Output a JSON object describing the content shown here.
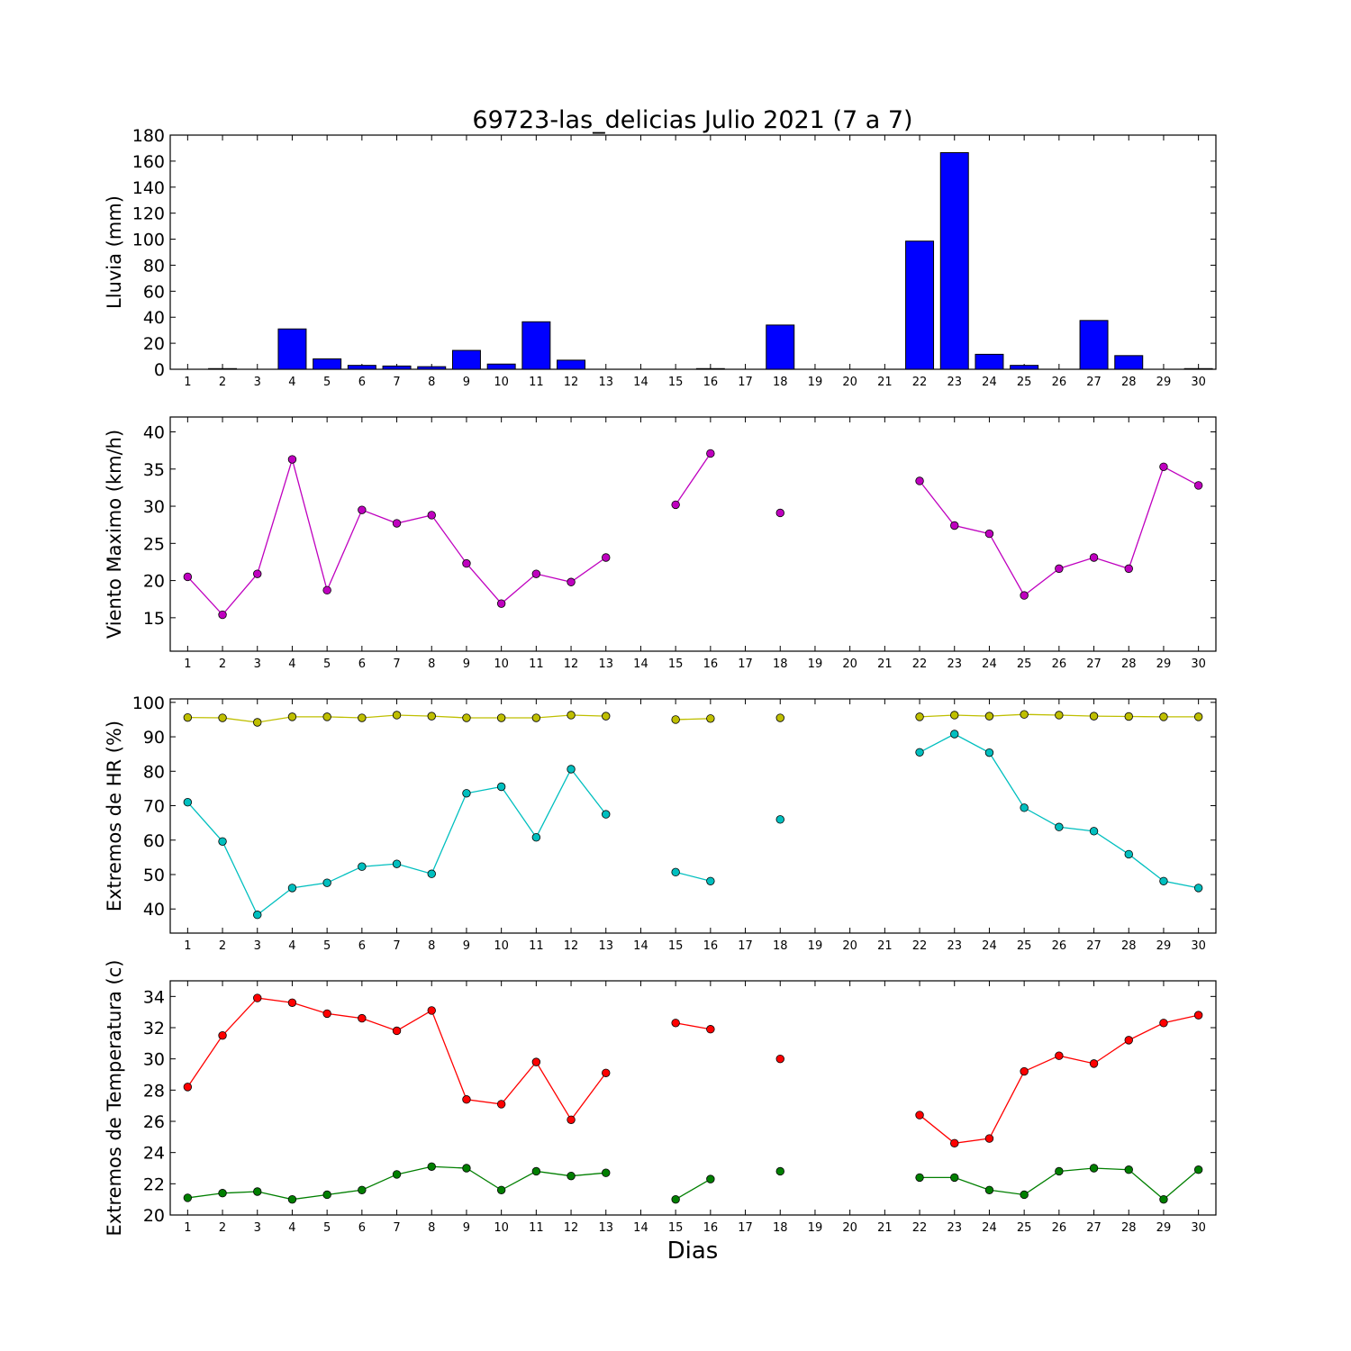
{
  "figure": {
    "title": "69723-las_delicias Julio 2021  (7 a 7)",
    "xlabel": "Dias"
  },
  "chart_data": [
    {
      "type": "bar",
      "ylabel": "Lluvia (mm)",
      "ylim": [
        0,
        180
      ],
      "yticks": [
        0,
        20,
        40,
        60,
        80,
        100,
        120,
        140,
        160,
        180
      ],
      "x": [
        1,
        2,
        3,
        4,
        5,
        6,
        7,
        8,
        9,
        10,
        11,
        12,
        13,
        14,
        15,
        16,
        17,
        18,
        19,
        20,
        21,
        22,
        23,
        24,
        25,
        26,
        27,
        28,
        29,
        30
      ],
      "series": [
        {
          "color": "#0000ff",
          "values": [
            0,
            0.5,
            0,
            31,
            8,
            3,
            2.5,
            2,
            14.5,
            4,
            36.5,
            7,
            0,
            0,
            0,
            0.5,
            0,
            34,
            0,
            0,
            0,
            98.5,
            166.5,
            11.5,
            3,
            0,
            37.5,
            10.5,
            0,
            0.5
          ]
        }
      ]
    },
    {
      "type": "line",
      "ylabel": "Viento Maximo (km/h)",
      "ylim": [
        10.5,
        42
      ],
      "yticks": [
        15,
        20,
        25,
        30,
        35,
        40
      ],
      "x": [
        1,
        2,
        3,
        4,
        5,
        6,
        7,
        8,
        9,
        10,
        11,
        12,
        13,
        14,
        15,
        16,
        17,
        18,
        19,
        20,
        21,
        22,
        23,
        24,
        25,
        26,
        27,
        28,
        29,
        30
      ],
      "series": [
        {
          "color": "#bf00bf",
          "values": [
            20.5,
            15.4,
            20.9,
            36.3,
            18.7,
            29.5,
            27.7,
            28.8,
            22.3,
            16.9,
            20.9,
            19.8,
            23.1,
            null,
            30.2,
            37.1,
            null,
            29.1,
            null,
            null,
            null,
            33.4,
            27.4,
            26.3,
            18.0,
            21.6,
            23.1,
            21.6,
            35.3,
            32.8
          ]
        }
      ]
    },
    {
      "type": "line",
      "ylabel": "Extremos de HR (%)",
      "ylim": [
        33,
        101
      ],
      "yticks": [
        40,
        50,
        60,
        70,
        80,
        90,
        100
      ],
      "x": [
        1,
        2,
        3,
        4,
        5,
        6,
        7,
        8,
        9,
        10,
        11,
        12,
        13,
        14,
        15,
        16,
        17,
        18,
        19,
        20,
        21,
        22,
        23,
        24,
        25,
        26,
        27,
        28,
        29,
        30
      ],
      "series": [
        {
          "color": "#bfbf00",
          "values": [
            95.6,
            95.5,
            94.2,
            95.8,
            95.8,
            95.5,
            96.3,
            96.0,
            95.5,
            95.5,
            95.5,
            96.3,
            96.0,
            null,
            95.0,
            95.3,
            null,
            95.5,
            null,
            null,
            null,
            95.8,
            96.3,
            96.0,
            96.5,
            96.3,
            96.0,
            95.9,
            95.8,
            95.8
          ]
        },
        {
          "color": "#00bfbf",
          "values": [
            71.0,
            59.6,
            38.3,
            46.1,
            47.6,
            52.3,
            53.1,
            50.2,
            73.6,
            75.5,
            60.8,
            80.6,
            67.5,
            null,
            50.7,
            48.1,
            null,
            66.0,
            null,
            null,
            null,
            85.5,
            90.8,
            85.4,
            69.4,
            63.8,
            62.6,
            55.9,
            48.1,
            46.1
          ]
        }
      ]
    },
    {
      "type": "line",
      "ylabel": "Extremos de Temperatura (c)",
      "ylim": [
        20,
        35
      ],
      "yticks": [
        20,
        22,
        24,
        26,
        28,
        30,
        32,
        34
      ],
      "x": [
        1,
        2,
        3,
        4,
        5,
        6,
        7,
        8,
        9,
        10,
        11,
        12,
        13,
        14,
        15,
        16,
        17,
        18,
        19,
        20,
        21,
        22,
        23,
        24,
        25,
        26,
        27,
        28,
        29,
        30
      ],
      "series": [
        {
          "color": "#ff0000",
          "values": [
            28.2,
            31.5,
            33.9,
            33.6,
            32.9,
            32.6,
            31.8,
            33.1,
            27.4,
            27.1,
            29.8,
            26.1,
            29.1,
            null,
            32.3,
            31.9,
            null,
            30.0,
            null,
            null,
            null,
            26.4,
            24.6,
            24.9,
            29.2,
            30.2,
            29.7,
            31.2,
            32.3,
            32.8
          ]
        },
        {
          "color": "#007f00",
          "values": [
            21.1,
            21.4,
            21.5,
            21.0,
            21.3,
            21.6,
            22.6,
            23.1,
            23.0,
            21.6,
            22.8,
            22.5,
            22.7,
            null,
            21.0,
            22.3,
            null,
            22.8,
            null,
            null,
            null,
            22.4,
            22.4,
            21.6,
            21.3,
            22.8,
            23.0,
            22.9,
            21.0,
            22.9
          ]
        }
      ]
    }
  ]
}
